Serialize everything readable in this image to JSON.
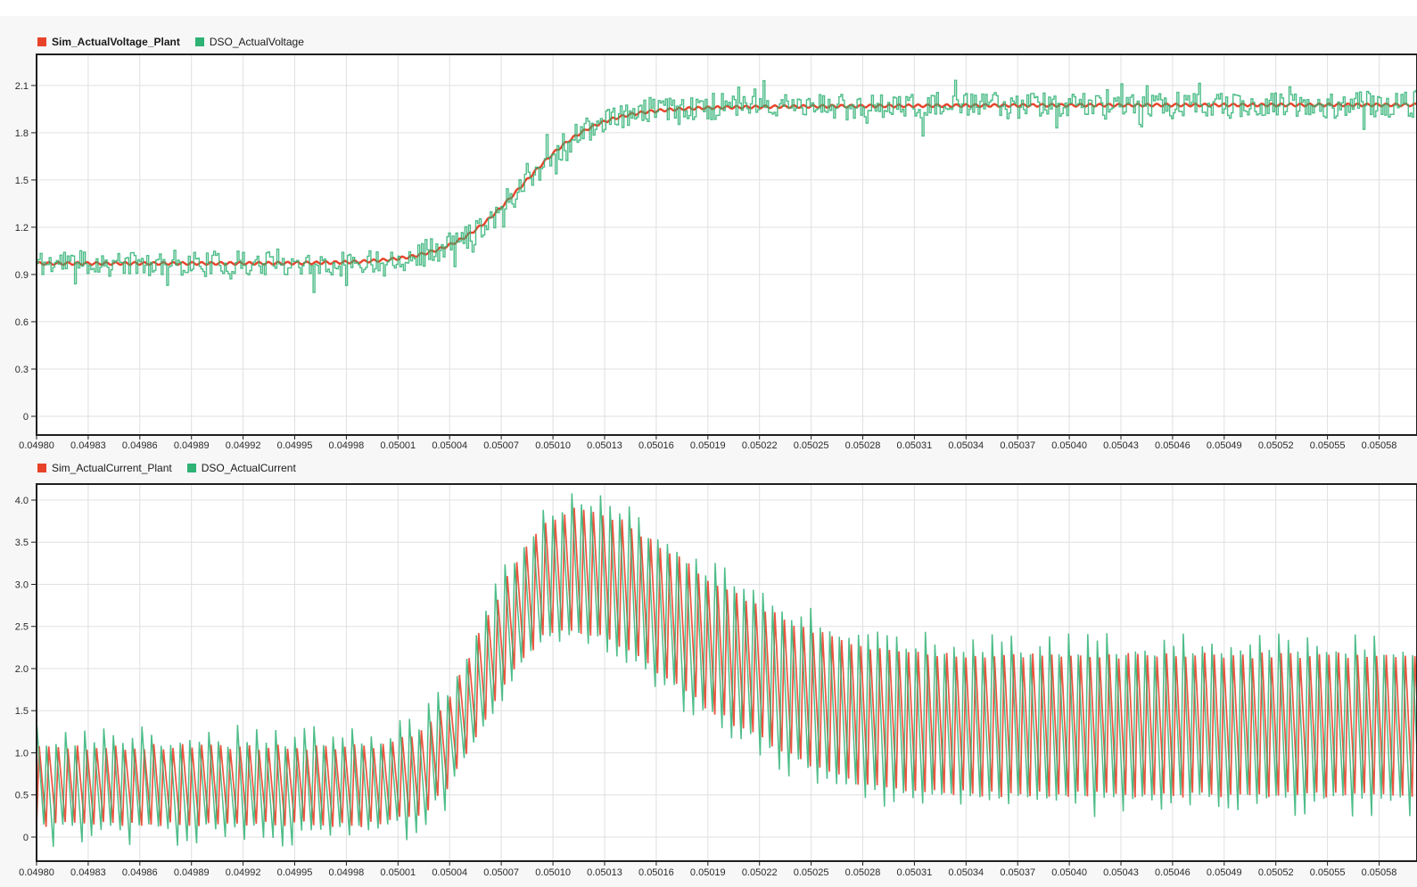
{
  "page": {
    "background": "#f7f7f7",
    "top_strip_color": "#ffffff"
  },
  "colors": {
    "sim_red": "#e8432a",
    "dso_green": "#2fb274",
    "grid": "#e0e0e0",
    "frame": "#1f1f1f",
    "tick_text": "#2b2b2b",
    "plot_bg": "#ffffff",
    "page_bg": "#f7f7f7"
  },
  "chart_data": [
    {
      "type": "line",
      "title": "",
      "xlabel": "",
      "ylabel": "",
      "grid": true,
      "legend_position": "top-left",
      "x_range": [
        0.0498,
        0.050602
      ],
      "y_range": [
        -0.119,
        2.303
      ],
      "x_ticks": [
        0.0498,
        0.04983,
        0.04986,
        0.04989,
        0.04992,
        0.04995,
        0.04998,
        0.05001,
        0.05004,
        0.05007,
        0.0501,
        0.05013,
        0.05016,
        0.05019,
        0.05022,
        0.05025,
        0.05028,
        0.05031,
        0.05034,
        0.05037,
        0.0504,
        0.05043,
        0.05046,
        0.05049,
        0.05052,
        0.05055,
        0.05058
      ],
      "x_tick_labels": [
        "0.04980",
        "0.04983",
        "0.04986",
        "0.04989",
        "0.04992",
        "0.04995",
        "0.04998",
        "0.05001",
        "0.05004",
        "0.05007",
        "0.05010",
        "0.05013",
        "0.05016",
        "0.05019",
        "0.05022",
        "0.05025",
        "0.05028",
        "0.05031",
        "0.05034",
        "0.05037",
        "0.05040",
        "0.05043",
        "0.05046",
        "0.05049",
        "0.05052",
        "0.05055",
        "0.05058"
      ],
      "y_ticks": [
        0,
        0.3,
        0.6,
        0.9,
        1.2,
        1.5,
        1.8,
        2.1
      ],
      "y_tick_labels": [
        "0",
        "0.3",
        "0.6",
        "0.9",
        "1.2",
        "1.5",
        "1.8",
        "2.1"
      ],
      "series": [
        {
          "name": "Sim_ActualVoltage_Plant",
          "color": "#e8432a",
          "width": 2.4,
          "opacity": 1,
          "legend_bold": true,
          "model": {
            "kind": "step",
            "seed": 3,
            "base": 0.97,
            "amp": 0.985,
            "center": 0.050082,
            "slope": 48000,
            "creep": 0.022,
            "creep_center": 0.05023,
            "creep_slope": 12000,
            "ripple_amp": 0.009,
            "ripple_period": 5.55e-06
          }
        },
        {
          "name": "DSO_ActualVoltage",
          "color": "#2fb274",
          "width": 1.4,
          "opacity": 0.85,
          "legend_bold": false,
          "model": {
            "kind": "step_noise",
            "seed": 11,
            "sample": 1.05e-06,
            "noise": 0.08,
            "spike_prob": 0.1,
            "spike_extra": 0.08
          }
        }
      ]
    },
    {
      "type": "line",
      "title": "",
      "xlabel": "",
      "ylabel": "",
      "grid": true,
      "legend_position": "top-left",
      "x_range": [
        0.0498,
        0.050602
      ],
      "y_range": [
        -0.286,
        4.201
      ],
      "x_ticks": [
        0.0498,
        0.04983,
        0.04986,
        0.04989,
        0.04992,
        0.04995,
        0.04998,
        0.05001,
        0.05004,
        0.05007,
        0.0501,
        0.05013,
        0.05016,
        0.05019,
        0.05022,
        0.05025,
        0.05028,
        0.05031,
        0.05034,
        0.05037,
        0.0504,
        0.05043,
        0.05046,
        0.05049,
        0.05052,
        0.05055,
        0.05058
      ],
      "x_tick_labels": [
        "0.04980",
        "0.04983",
        "0.04986",
        "0.04989",
        "0.04992",
        "0.04995",
        "0.04998",
        "0.05001",
        "0.05004",
        "0.05007",
        "0.05010",
        "0.05013",
        "0.05016",
        "0.05019",
        "0.05022",
        "0.05025",
        "0.05028",
        "0.05031",
        "0.05034",
        "0.05037",
        "0.05040",
        "0.05043",
        "0.05046",
        "0.05049",
        "0.05052",
        "0.05055",
        "0.05058"
      ],
      "y_ticks": [
        0,
        0.5,
        1.0,
        1.5,
        2.0,
        2.5,
        3.0,
        3.5,
        4.0
      ],
      "y_tick_labels": [
        "0",
        "0.5",
        "1.0",
        "1.5",
        "2.0",
        "2.5",
        "3.0",
        "3.5",
        "4.0"
      ],
      "envelope": {
        "mean": [
          [
            0.0498,
            0.61
          ],
          [
            0.05,
            0.61
          ],
          [
            0.050025,
            0.78
          ],
          [
            0.05004,
            1.15
          ],
          [
            0.05006,
            1.95
          ],
          [
            0.05008,
            2.7
          ],
          [
            0.050095,
            3.06
          ],
          [
            0.05011,
            3.17
          ],
          [
            0.050125,
            3.14
          ],
          [
            0.05014,
            3.0
          ],
          [
            0.05016,
            2.74
          ],
          [
            0.05019,
            2.3
          ],
          [
            0.05022,
            1.95
          ],
          [
            0.05025,
            1.65
          ],
          [
            0.05028,
            1.45
          ],
          [
            0.05031,
            1.37
          ],
          [
            0.05035,
            1.33
          ],
          [
            0.05061,
            1.33
          ]
        ],
        "half_amp": [
          [
            0.0498,
            0.46
          ],
          [
            0.05,
            0.46
          ],
          [
            0.05004,
            0.52
          ],
          [
            0.05008,
            0.63
          ],
          [
            0.05011,
            0.72
          ],
          [
            0.05016,
            0.75
          ],
          [
            0.05022,
            0.78
          ],
          [
            0.05028,
            0.82
          ],
          [
            0.05061,
            0.83
          ]
        ]
      },
      "series": [
        {
          "name": "Sim_ActualCurrent_Plant",
          "color": "#e8432a",
          "width": 1.7,
          "opacity": 0.9,
          "legend_bold": false,
          "model": {
            "kind": "saw",
            "seed": 5,
            "period": 5.55e-06,
            "duty": 0.28,
            "jitter": 0.07
          }
        },
        {
          "name": "DSO_ActualCurrent",
          "color": "#2fb274",
          "width": 1.5,
          "opacity": 0.85,
          "legend_bold": false,
          "model": {
            "kind": "saw_noise",
            "seed": 23,
            "period": 5.55e-06,
            "duty": 0.28,
            "lead": 1.35e-06,
            "extra": 0.27,
            "vmax": 4.08,
            "vmin": -0.22
          }
        }
      ]
    }
  ]
}
